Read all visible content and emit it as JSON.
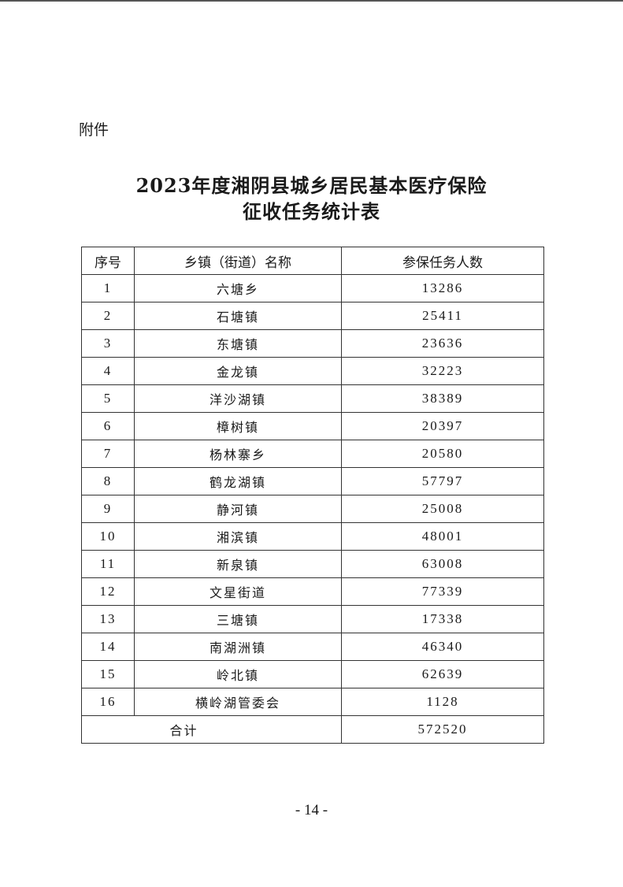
{
  "attachment_label": "附件",
  "title_line1": "2023年度湘阴县城乡居民基本医疗保险",
  "title_line2": "征收任务统计表",
  "table": {
    "headers": [
      "序号",
      "乡镇（街道）名称",
      "参保任务人数"
    ],
    "rows": [
      [
        "1",
        "六塘乡",
        "13286"
      ],
      [
        "2",
        "石塘镇",
        "25411"
      ],
      [
        "3",
        "东塘镇",
        "23636"
      ],
      [
        "4",
        "金龙镇",
        "32223"
      ],
      [
        "5",
        "洋沙湖镇",
        "38389"
      ],
      [
        "6",
        "樟树镇",
        "20397"
      ],
      [
        "7",
        "杨林寨乡",
        "20580"
      ],
      [
        "8",
        "鹤龙湖镇",
        "57797"
      ],
      [
        "9",
        "静河镇",
        "25008"
      ],
      [
        "10",
        "湘滨镇",
        "48001"
      ],
      [
        "11",
        "新泉镇",
        "63008"
      ],
      [
        "12",
        "文星街道",
        "77339"
      ],
      [
        "13",
        "三塘镇",
        "17338"
      ],
      [
        "14",
        "南湖洲镇",
        "46340"
      ],
      [
        "15",
        "岭北镇",
        "62639"
      ],
      [
        "16",
        "横岭湖管委会",
        "1128"
      ]
    ],
    "total_label": "合计",
    "total_value": "572520"
  },
  "page_number": "- 14 -"
}
